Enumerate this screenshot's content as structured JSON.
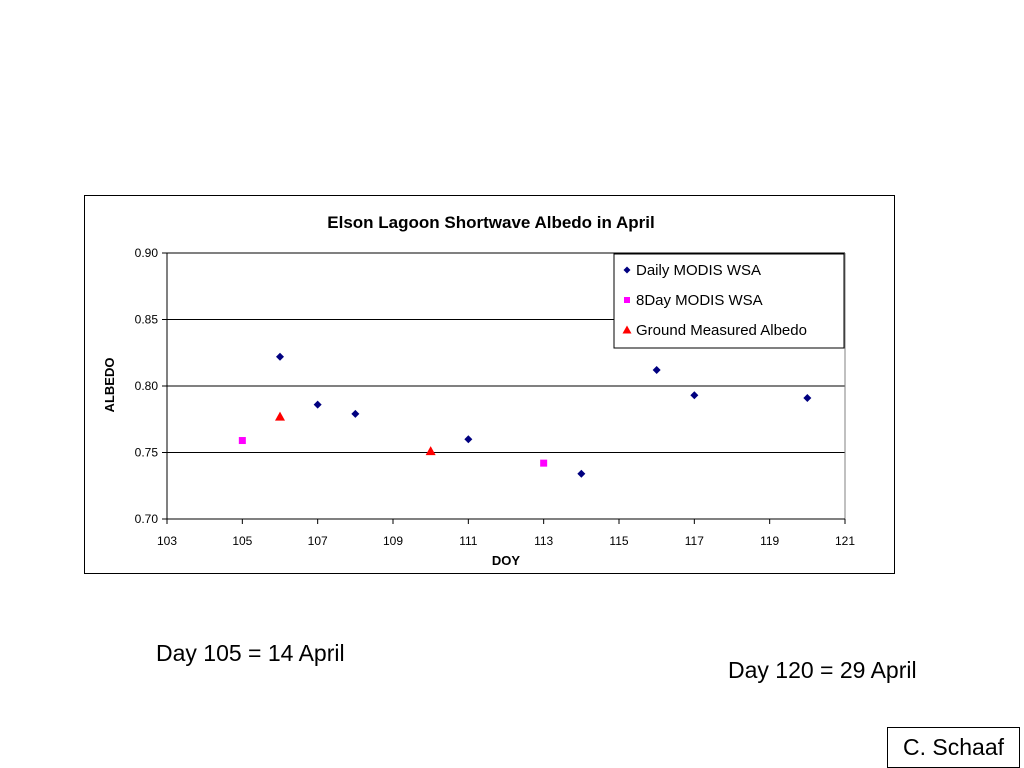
{
  "chart_data": {
    "type": "scatter",
    "title": "Elson Lagoon Shortwave Albedo in April",
    "xlabel": "DOY",
    "ylabel": "ALBEDO",
    "xlim": [
      103,
      121
    ],
    "ylim": [
      0.7,
      0.9
    ],
    "x_ticks": [
      "103",
      "105",
      "107",
      "109",
      "111",
      "113",
      "115",
      "117",
      "119",
      "121"
    ],
    "y_ticks": [
      "0.70",
      "0.75",
      "0.80",
      "0.85",
      "0.90"
    ],
    "grid": "horizontal",
    "legend_position": "top-right",
    "series": [
      {
        "name": "Daily MODIS WSA",
        "marker": "diamond",
        "color": "#000080",
        "points": [
          [
            106,
            0.822
          ],
          [
            107,
            0.786
          ],
          [
            108,
            0.779
          ],
          [
            111,
            0.76
          ],
          [
            114,
            0.734
          ],
          [
            116,
            0.812
          ],
          [
            117,
            0.793
          ],
          [
            120,
            0.791
          ]
        ]
      },
      {
        "name": "8Day MODIS WSA",
        "marker": "square",
        "color": "#FF00FF",
        "points": [
          [
            105,
            0.759
          ],
          [
            113,
            0.742
          ]
        ]
      },
      {
        "name": "Ground Measured Albedo",
        "marker": "triangle",
        "color": "#FF0000",
        "points": [
          [
            106,
            0.777
          ],
          [
            110,
            0.751
          ]
        ]
      }
    ]
  },
  "notes": {
    "day105": "Day 105 = 14 April",
    "day120": "Day 120 = 29 April"
  },
  "credit": "C. Schaaf"
}
